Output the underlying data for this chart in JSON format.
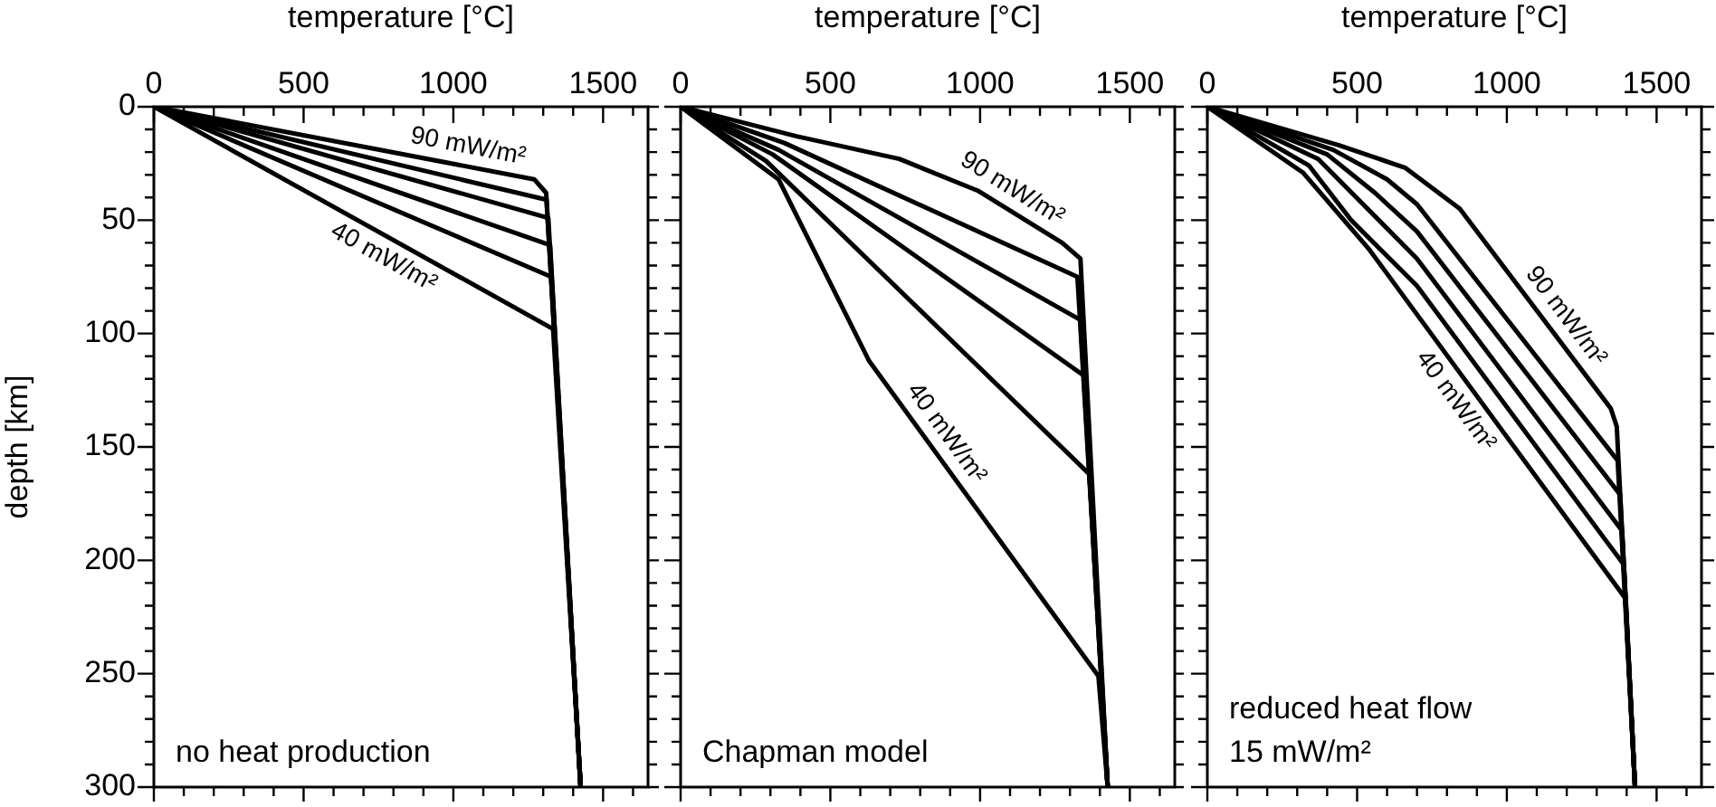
{
  "chart_data": [
    {
      "type": "line",
      "xlabel": "temperature [°C]",
      "ylabel": "depth [km]",
      "xlim": [
        0,
        1650
      ],
      "ylim": [
        300,
        0
      ],
      "xticks": [
        0,
        {
          "value": 100,
          "label": null
        },
        {
          "value": 200,
          "label": null
        },
        {
          "value": 300,
          "label": null
        },
        {
          "value": 400,
          "label": null
        },
        500,
        {
          "value": 600,
          "label": null
        },
        {
          "value": 700,
          "label": null
        },
        {
          "value": 800,
          "label": null
        },
        {
          "value": 900,
          "label": null
        },
        1000,
        {
          "value": 1100,
          "label": null
        },
        {
          "value": 1200,
          "label": null
        },
        {
          "value": 1300,
          "label": null
        },
        {
          "value": 1400,
          "label": null
        },
        1500,
        {
          "value": 1600,
          "label": null
        }
      ],
      "yticks": [
        0,
        {
          "value": 10,
          "label": null
        },
        {
          "value": 20,
          "label": null
        },
        {
          "value": 30,
          "label": null
        },
        {
          "value": 40,
          "label": null
        },
        50,
        {
          "value": 60,
          "label": null
        },
        {
          "value": 70,
          "label": null
        },
        {
          "value": 80,
          "label": null
        },
        {
          "value": 90,
          "label": null
        },
        100,
        {
          "value": 110,
          "label": null
        },
        {
          "value": 120,
          "label": null
        },
        {
          "value": 130,
          "label": null
        },
        {
          "value": 140,
          "label": null
        },
        150,
        {
          "value": 160,
          "label": null
        },
        {
          "value": 170,
          "label": null
        },
        {
          "value": 180,
          "label": null
        },
        {
          "value": 190,
          "label": null
        },
        200,
        {
          "value": 210,
          "label": null
        },
        {
          "value": 220,
          "label": null
        },
        {
          "value": 230,
          "label": null
        },
        {
          "value": 240,
          "label": null
        },
        250,
        {
          "value": 260,
          "label": null
        },
        {
          "value": 270,
          "label": null
        },
        {
          "value": 280,
          "label": null
        },
        {
          "value": 290,
          "label": null
        },
        300
      ],
      "series": [
        {
          "name": "90 mW/m²",
          "color": "#000000",
          "x": [
            0,
            1270,
            1310,
            1425
          ],
          "values": [
            0,
            32,
            38,
            300
          ]
        },
        {
          "color": "#000000",
          "x": [
            0,
            1311,
            1425
          ],
          "values": [
            0,
            41,
            300
          ]
        },
        {
          "color": "#000000",
          "x": [
            0,
            1317,
            1425
          ],
          "values": [
            0,
            49,
            300
          ]
        },
        {
          "color": "#000000",
          "x": [
            0,
            1323,
            1425
          ],
          "values": [
            0,
            61,
            300
          ]
        },
        {
          "color": "#000000",
          "x": [
            0,
            1327,
            1425
          ],
          "values": [
            0,
            75,
            300
          ]
        },
        {
          "name": "40 mW/m²",
          "color": "#000000",
          "x": [
            0,
            1333,
            1425
          ],
          "values": [
            0,
            98,
            300
          ]
        }
      ],
      "annotations": [
        "no heat production"
      ]
    },
    {
      "type": "line",
      "xlim": [
        0,
        1650
      ],
      "ylim": [
        300,
        0
      ],
      "tick_labels": "x",
      "xlabel": "temperature [°C]",
      "xticks": [
        0,
        {
          "value": 100,
          "label": null
        },
        {
          "value": 200,
          "label": null
        },
        {
          "value": 300,
          "label": null
        },
        {
          "value": 400,
          "label": null
        },
        500,
        {
          "value": 600,
          "label": null
        },
        {
          "value": 700,
          "label": null
        },
        {
          "value": 800,
          "label": null
        },
        {
          "value": 900,
          "label": null
        },
        1000,
        {
          "value": 1100,
          "label": null
        },
        {
          "value": 1200,
          "label": null
        },
        {
          "value": 1300,
          "label": null
        },
        {
          "value": 1400,
          "label": null
        },
        1500,
        {
          "value": 1600,
          "label": null
        }
      ],
      "yticks": [
        0,
        {
          "value": 10,
          "label": null
        },
        {
          "value": 20,
          "label": null
        },
        {
          "value": 30,
          "label": null
        },
        {
          "value": 40,
          "label": null
        },
        50,
        {
          "value": 60,
          "label": null
        },
        {
          "value": 70,
          "label": null
        },
        {
          "value": 80,
          "label": null
        },
        {
          "value": 90,
          "label": null
        },
        100,
        {
          "value": 110,
          "label": null
        },
        {
          "value": 120,
          "label": null
        },
        {
          "value": 130,
          "label": null
        },
        {
          "value": 140,
          "label": null
        },
        150,
        {
          "value": 160,
          "label": null
        },
        {
          "value": 170,
          "label": null
        },
        {
          "value": 180,
          "label": null
        },
        {
          "value": 190,
          "label": null
        },
        200,
        {
          "value": 210,
          "label": null
        },
        {
          "value": 220,
          "label": null
        },
        {
          "value": 230,
          "label": null
        },
        {
          "value": 240,
          "label": null
        },
        250,
        {
          "value": 260,
          "label": null
        },
        {
          "value": 270,
          "label": null
        },
        {
          "value": 280,
          "label": null
        },
        {
          "value": 290,
          "label": null
        },
        300
      ],
      "series": [
        {
          "name": "90 mW/m²",
          "color": "#000000",
          "x": [
            0,
            387,
            730,
            992,
            1274,
            1335,
            1426
          ],
          "values": [
            0,
            13,
            23,
            37,
            60,
            67,
            300
          ]
        },
        {
          "color": "#000000",
          "x": [
            0,
            347,
            1325,
            1426
          ],
          "values": [
            0,
            16,
            75,
            300
          ]
        },
        {
          "color": "#000000",
          "x": [
            0,
            327,
            1335,
            1426
          ],
          "values": [
            0,
            19,
            94,
            300
          ]
        },
        {
          "color": "#000000",
          "x": [
            0,
            307,
            1351,
            1426
          ],
          "values": [
            0,
            21,
            119,
            300
          ]
        },
        {
          "color": "#000000",
          "x": [
            0,
            286,
            1365,
            1426
          ],
          "values": [
            0,
            24,
            162,
            300
          ]
        },
        {
          "name": "40 mW/m²",
          "color": "#000000",
          "x": [
            0,
            327,
            629,
            1395,
            1426
          ],
          "values": [
            0,
            32,
            112,
            251,
            300
          ]
        }
      ],
      "annotations": [
        "Chapman model"
      ]
    },
    {
      "type": "line",
      "xlim": [
        0,
        1650
      ],
      "ylim": [
        300,
        0
      ],
      "tick_labels": "x",
      "xlabel": "temperature [°C]",
      "xticks": [
        0,
        {
          "value": 100,
          "label": null
        },
        {
          "value": 200,
          "label": null
        },
        {
          "value": 300,
          "label": null
        },
        {
          "value": 400,
          "label": null
        },
        500,
        {
          "value": 600,
          "label": null
        },
        {
          "value": 700,
          "label": null
        },
        {
          "value": 800,
          "label": null
        },
        {
          "value": 900,
          "label": null
        },
        1000,
        {
          "value": 1100,
          "label": null
        },
        {
          "value": 1200,
          "label": null
        },
        {
          "value": 1300,
          "label": null
        },
        {
          "value": 1400,
          "label": null
        },
        1500,
        {
          "value": 1600,
          "label": null
        }
      ],
      "yticks": [
        0,
        {
          "value": 10,
          "label": null
        },
        {
          "value": 20,
          "label": null
        },
        {
          "value": 30,
          "label": null
        },
        {
          "value": 40,
          "label": null
        },
        50,
        {
          "value": 60,
          "label": null
        },
        {
          "value": 70,
          "label": null
        },
        {
          "value": 80,
          "label": null
        },
        {
          "value": 90,
          "label": null
        },
        100,
        {
          "value": 110,
          "label": null
        },
        {
          "value": 120,
          "label": null
        },
        {
          "value": 130,
          "label": null
        },
        {
          "value": 140,
          "label": null
        },
        150,
        {
          "value": 160,
          "label": null
        },
        {
          "value": 170,
          "label": null
        },
        {
          "value": 180,
          "label": null
        },
        {
          "value": 190,
          "label": null
        },
        200,
        {
          "value": 210,
          "label": null
        },
        {
          "value": 220,
          "label": null
        },
        {
          "value": 230,
          "label": null
        },
        {
          "value": 240,
          "label": null
        },
        250,
        {
          "value": 260,
          "label": null
        },
        {
          "value": 270,
          "label": null
        },
        {
          "value": 280,
          "label": null
        },
        {
          "value": 290,
          "label": null
        },
        300
      ],
      "series": [
        {
          "name": "90 mW/m²",
          "color": "#000000",
          "x": [
            0,
            440,
            662,
            843,
            1347,
            1367,
            1428
          ],
          "values": [
            0,
            17,
            27,
            45,
            133,
            141,
            300
          ]
        },
        {
          "color": "#000000",
          "x": [
            0,
            420,
            600,
            700,
            1370,
            1428
          ],
          "values": [
            0,
            19,
            32,
            43,
            156,
            300
          ]
        },
        {
          "color": "#000000",
          "x": [
            0,
            400,
            560,
            700,
            1378,
            1428
          ],
          "values": [
            0,
            21,
            38,
            55,
            171,
            300
          ]
        },
        {
          "color": "#000000",
          "x": [
            0,
            370,
            520,
            700,
            1385,
            1428
          ],
          "values": [
            0,
            23,
            43,
            67,
            187,
            300
          ]
        },
        {
          "color": "#000000",
          "x": [
            0,
            340,
            480,
            700,
            1391,
            1428
          ],
          "values": [
            0,
            26,
            50,
            79,
            202,
            300
          ]
        },
        {
          "name": "40 mW/m²",
          "color": "#000000",
          "x": [
            0,
            319,
            541,
            1397,
            1428
          ],
          "values": [
            0,
            29,
            63,
            217,
            300
          ]
        }
      ],
      "annotations": [
        "reduced heat flow",
        "15 mW/m²"
      ]
    }
  ]
}
